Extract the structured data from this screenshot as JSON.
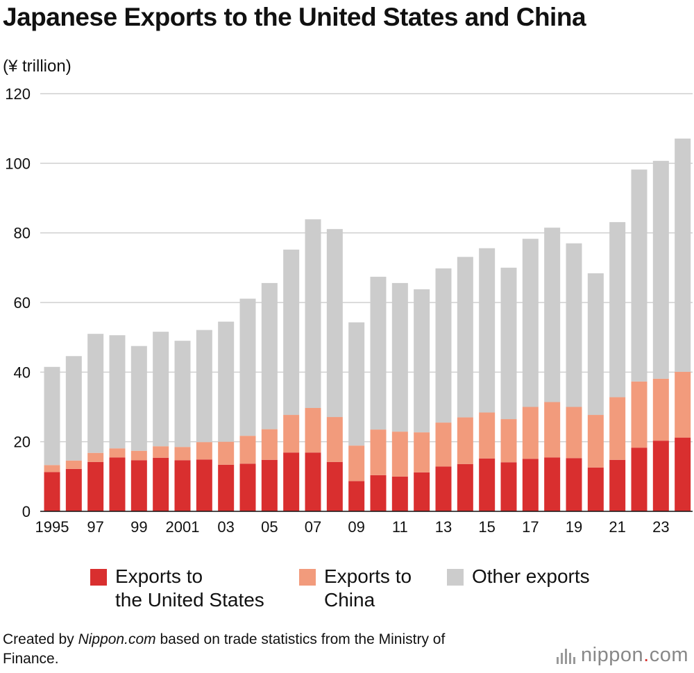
{
  "title": "Japanese Exports to the United States and China",
  "unit_label": "(¥ trillion)",
  "legend": [
    {
      "label": "Exports to\nthe United States",
      "color": "#d92f2f"
    },
    {
      "label": "Exports to\nChina",
      "color": "#f29b7c"
    },
    {
      "label": "Other exports",
      "color": "#cccccc"
    }
  ],
  "footnote": {
    "prefix": "Created by ",
    "source": "Nippon.com",
    "suffix": " based on trade statistics from the Ministry of Finance."
  },
  "logo": {
    "name": "nippon",
    "dot": ".",
    "tld": "com"
  },
  "chart_data": {
    "type": "bar",
    "stacked": true,
    "title": "Japanese Exports to the United States and China",
    "ylabel": "(¥ trillion)",
    "xlabel": "",
    "ylim": [
      0,
      120
    ],
    "yticks": [
      0,
      20,
      40,
      60,
      80,
      100,
      120
    ],
    "grid": true,
    "categories": [
      "1995",
      "1996",
      "1997",
      "1998",
      "1999",
      "2000",
      "2001",
      "2002",
      "2003",
      "2004",
      "2005",
      "2006",
      "2007",
      "2008",
      "2009",
      "2010",
      "2011",
      "2012",
      "2013",
      "2014",
      "2015",
      "2016",
      "2017",
      "2018",
      "2019",
      "2020",
      "2021",
      "2022",
      "2023",
      "2024"
    ],
    "tick_labels": [
      "1995",
      "",
      "97",
      "",
      "99",
      "",
      "2001",
      "",
      "03",
      "",
      "05",
      "",
      "07",
      "",
      "09",
      "",
      "11",
      "",
      "13",
      "",
      "15",
      "",
      "17",
      "",
      "19",
      "",
      "21",
      "",
      "23",
      ""
    ],
    "series": [
      {
        "name": "Exports to the United States",
        "color": "#d92f2f",
        "values": [
          11.3,
          12.2,
          14.2,
          15.5,
          14.7,
          15.4,
          14.7,
          14.9,
          13.4,
          13.7,
          14.8,
          16.9,
          16.9,
          14.2,
          8.7,
          10.4,
          10.0,
          11.2,
          12.9,
          13.6,
          15.2,
          14.1,
          15.1,
          15.5,
          15.3,
          12.6,
          14.8,
          18.3,
          20.3,
          21.2
        ]
      },
      {
        "name": "Exports to China",
        "color": "#f29b7c",
        "values": [
          2.0,
          2.4,
          2.6,
          2.6,
          2.7,
          3.3,
          3.8,
          5.0,
          6.6,
          8.0,
          8.8,
          10.8,
          12.8,
          12.9,
          10.2,
          13.1,
          12.9,
          11.5,
          12.6,
          13.4,
          13.2,
          12.4,
          14.9,
          15.9,
          14.7,
          15.1,
          18.0,
          19.0,
          17.8,
          18.9
        ]
      },
      {
        "name": "Other exports",
        "color": "#cccccc",
        "values": [
          28.2,
          30.0,
          34.2,
          32.5,
          30.1,
          32.9,
          30.5,
          32.2,
          34.5,
          39.4,
          42.0,
          47.5,
          54.2,
          54.0,
          35.4,
          43.9,
          42.7,
          41.1,
          44.3,
          46.1,
          47.2,
          43.5,
          48.3,
          50.1,
          47.0,
          40.7,
          50.3,
          60.9,
          62.6,
          67.0
        ]
      }
    ]
  }
}
